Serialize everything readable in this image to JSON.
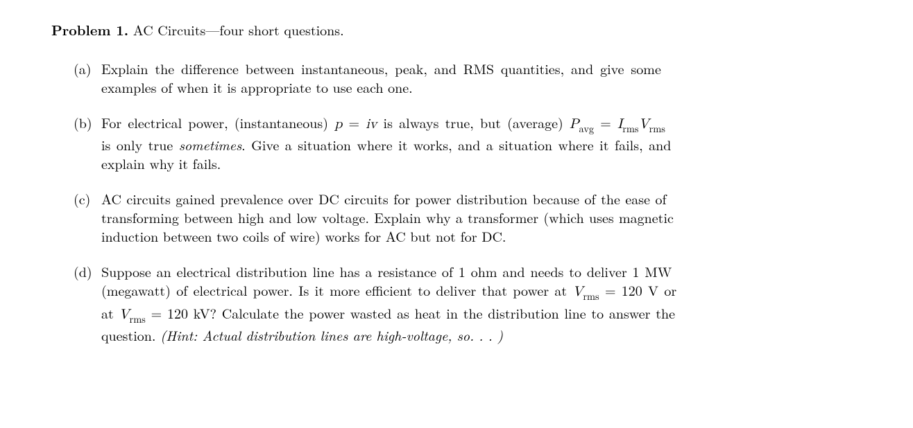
{
  "header": {
    "label": "Problem 1.",
    "title": " AC Circuits—four short questions."
  },
  "items": {
    "a": {
      "label": "(a)",
      "line1": "Explain the difference between instantaneous, peak, and RMS quantities, and give some",
      "line2": "examples of when it is appropriate to use each one."
    },
    "b": {
      "label": "(b)",
      "pre": "For electrical power, (instantaneous) ",
      "eq1_lhs": "p",
      "eq1_eq": " = ",
      "eq1_rhs": "iv",
      "mid1": " is always true, but (average) ",
      "eq2_P": "P",
      "eq2_sub": "avg",
      "eq2_eq": " = ",
      "eq2_I": "I",
      "eq2_Isub": "rms",
      "eq2_V": "V",
      "eq2_Vsub": "rms",
      "line2a": "is only true ",
      "line2_it": "sometimes",
      "line2b": ". Give a situation where it works, and a situation where it fails, and",
      "line3": "explain why it fails."
    },
    "c": {
      "label": "(c)",
      "line1": "AC circuits gained prevalence over DC circuits for power distribution because of the ease of",
      "line2": "transforming between high and low voltage. Explain why a transformer (which uses magnetic",
      "line3": "induction between two coils of wire) works for AC but not for DC."
    },
    "d": {
      "label": "(d)",
      "line1a": "Suppose an electrical distribution line has a resistance of 1 ohm and needs to deliver 1 MW",
      "line2a": "(megawatt) of electrical power. Is it more efficient to deliver that power at ",
      "V": "V",
      "Vsub": "rms",
      "line2b": " = 120 V or",
      "line3a": "at ",
      "line3b": " = 120 kV? Calculate the power wasted as heat in the distribution line to answer the",
      "line4a": "question. ",
      "hint": "(Hint: Actual distribution lines are high-voltage, so. . . )"
    }
  }
}
